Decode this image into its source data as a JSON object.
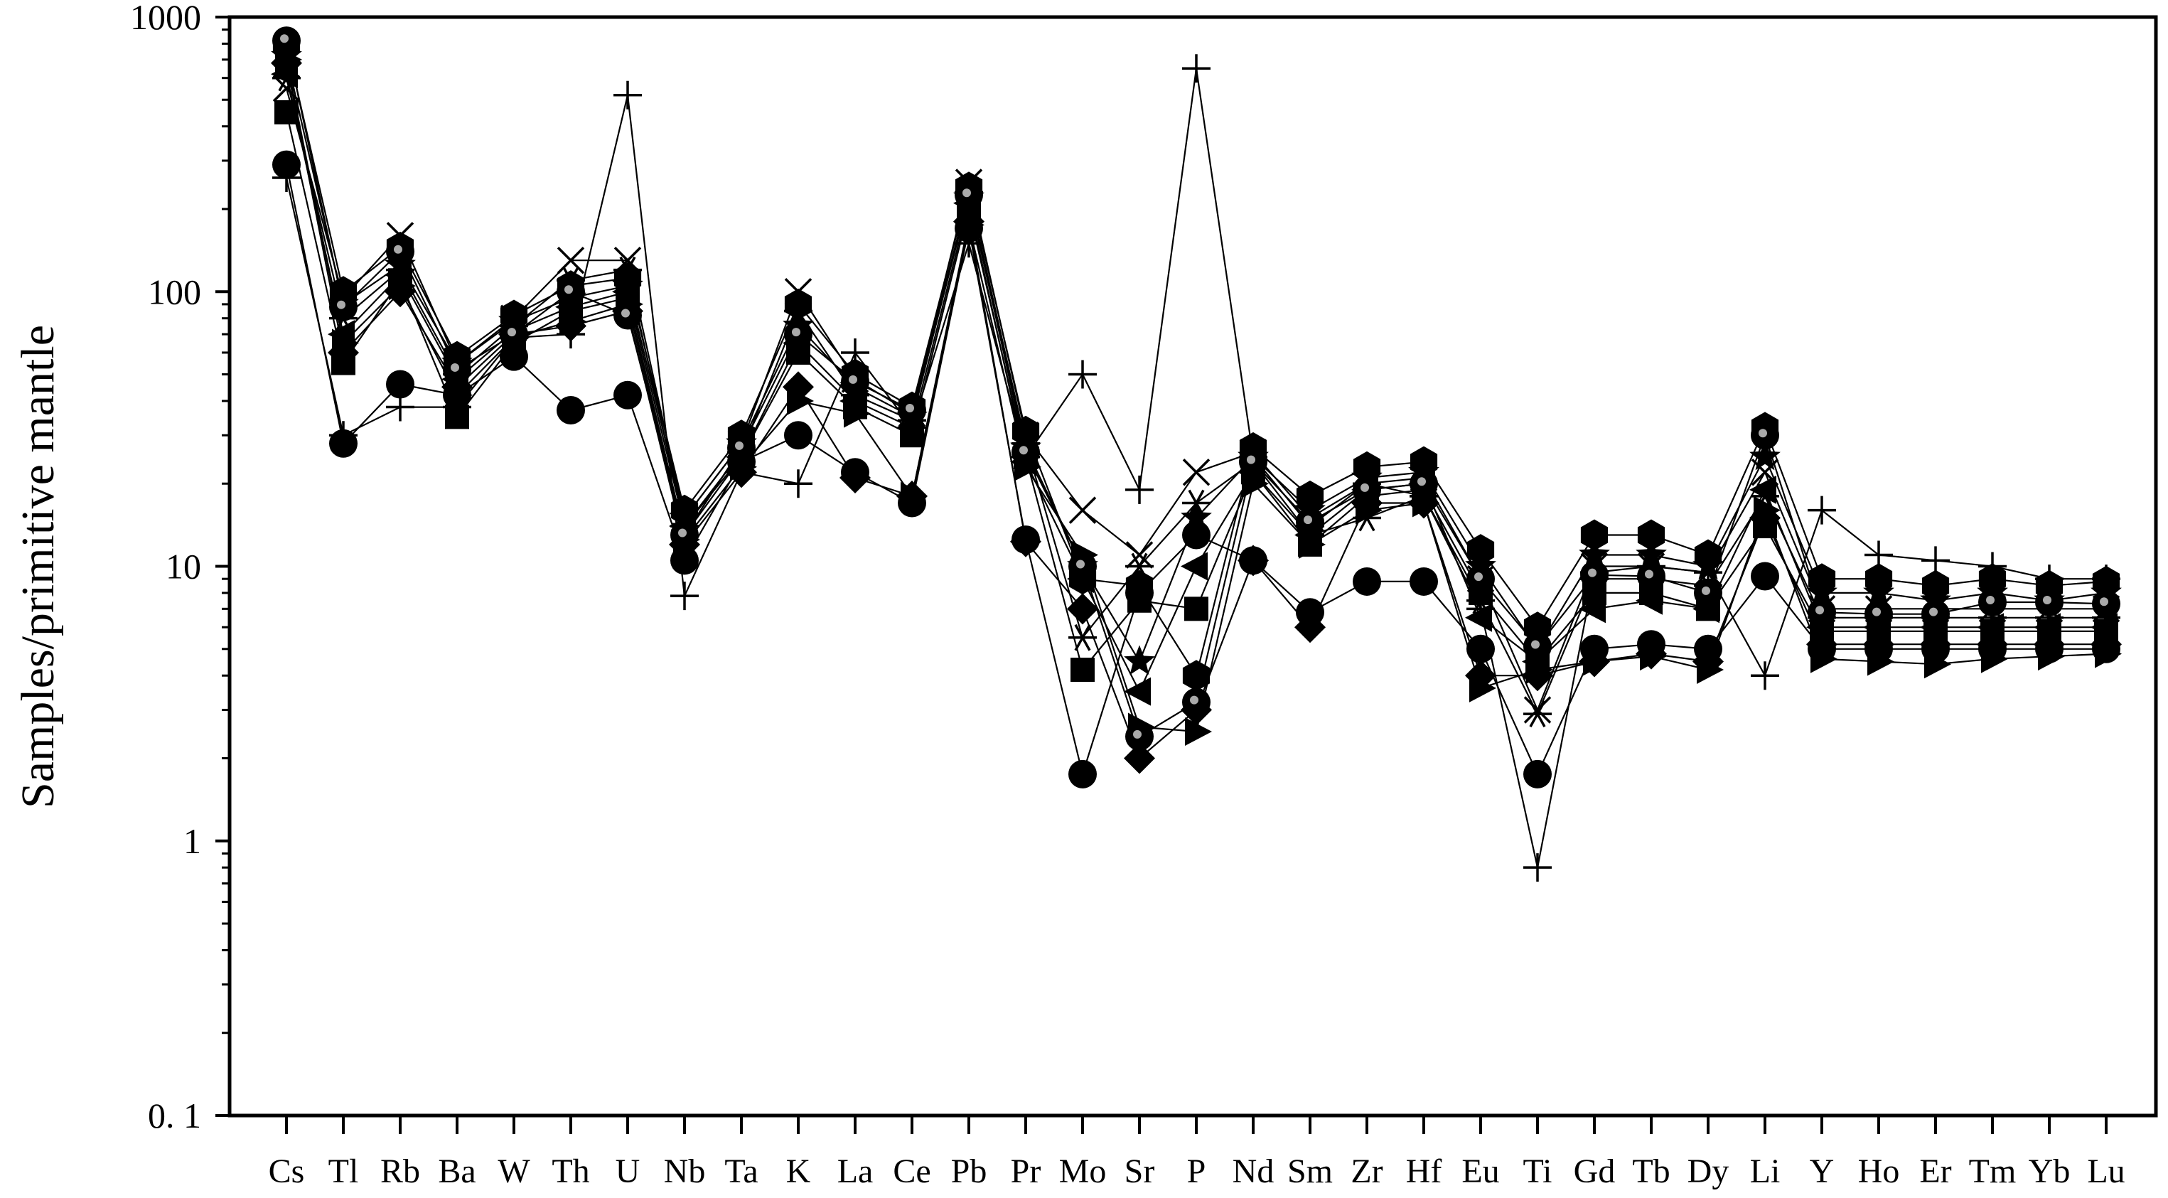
{
  "chart_data": {
    "type": "line",
    "title": "",
    "xlabel": "",
    "ylabel": "Samples/primitive mantle",
    "yscale": "log",
    "ylim": [
      0.1,
      1000
    ],
    "ytick_labels": [
      "0. 1",
      "1",
      "10",
      "100",
      "1000"
    ],
    "grid": false,
    "legend": "none",
    "categories": [
      "Cs",
      "Tl",
      "Rb",
      "Ba",
      "W",
      "Th",
      "U",
      "Nb",
      "Ta",
      "K",
      "La",
      "Ce",
      "Pb",
      "Pr",
      "Mo",
      "Sr",
      "P",
      "Nd",
      "Sm",
      "Zr",
      "Hf",
      "Eu",
      "Ti",
      "Gd",
      "Tb",
      "Dy",
      "Li",
      "Y",
      "Ho",
      "Er",
      "Tm",
      "Yb",
      "Lu"
    ],
    "series": [
      {
        "marker": "circle",
        "values": [
          290,
          28,
          46,
          42,
          58,
          37,
          42,
          10.5,
          24,
          30,
          22,
          17,
          170,
          12.5,
          1.75,
          8,
          13,
          10.5,
          6.8,
          8.8,
          8.8,
          5,
          1.75,
          5,
          5.2,
          5,
          9.2,
          5,
          5,
          5,
          5,
          5,
          5
        ]
      },
      {
        "marker": "plus",
        "values": [
          260,
          30,
          38,
          38,
          68,
          70,
          520,
          7.8,
          22,
          20,
          60,
          32,
          150,
          25,
          50,
          19,
          650,
          25,
          14,
          20,
          18,
          7,
          0.8,
          9.5,
          10,
          9.5,
          4,
          16,
          11,
          10.5,
          10,
          9,
          9
        ]
      },
      {
        "marker": "x",
        "values": [
          550,
          95,
          160,
          55,
          80,
          130,
          130,
          15,
          28,
          100,
          48,
          36,
          250,
          30,
          16,
          11,
          22,
          26,
          15,
          20,
          21,
          9,
          3,
          10,
          10,
          9.5,
          22,
          7,
          7,
          7,
          7,
          7,
          7
        ]
      },
      {
        "marker": "asterisk",
        "values": [
          600,
          80,
          120,
          50,
          75,
          110,
          120,
          14,
          26,
          85,
          42,
          34,
          230,
          28,
          5.5,
          10,
          17,
          24,
          13,
          15,
          18,
          7.5,
          2.9,
          9,
          9,
          8.5,
          18,
          6.5,
          6.5,
          6.5,
          6.5,
          6.5,
          6.5
        ]
      },
      {
        "marker": "square",
        "values": [
          450,
          55,
          110,
          35,
          65,
          85,
          95,
          13,
          25,
          60,
          38,
          30,
          200,
          25,
          4.2,
          7.5,
          7,
          22,
          12,
          18,
          19,
          8,
          4.5,
          8,
          8,
          7,
          14,
          5.8,
          5.8,
          5.8,
          5.8,
          5.8,
          5.8
        ]
      },
      {
        "marker": "diamond",
        "values": [
          680,
          60,
          100,
          45,
          70,
          75,
          85,
          12,
          22,
          45,
          21,
          18,
          180,
          12.3,
          7,
          2,
          3,
          10.5,
          6,
          17,
          17,
          4,
          4,
          4.5,
          4.8,
          4.5,
          15,
          5.2,
          5.2,
          5.2,
          5.2,
          5.2,
          5.2
        ]
      },
      {
        "marker": "triangle-right",
        "values": [
          700,
          65,
          105,
          42,
          68,
          78,
          90,
          12.5,
          23,
          40,
          36,
          18,
          175,
          23,
          11,
          2.6,
          2.5,
          20,
          12,
          16,
          17,
          3.6,
          4.2,
          4.5,
          4.7,
          4.2,
          16,
          4.6,
          4.5,
          4.4,
          4.6,
          4.7,
          4.8
        ]
      },
      {
        "marker": "triangle-left",
        "values": [
          620,
          70,
          115,
          48,
          72,
          88,
          100,
          14,
          25,
          65,
          40,
          32,
          210,
          24,
          9,
          3.5,
          10,
          22,
          13,
          19,
          20,
          6.5,
          4.5,
          7,
          7.5,
          7,
          19,
          6,
          6,
          6,
          6,
          6,
          6
        ]
      },
      {
        "marker": "hexagon",
        "values": [
          800,
          100,
          145,
          58,
          82,
          105,
          112,
          16,
          30,
          90,
          50,
          38,
          240,
          31,
          9,
          8.5,
          4,
          27,
          18,
          23,
          24,
          11.5,
          6,
          13,
          13,
          11,
          32,
          9,
          9,
          8.5,
          9,
          8.5,
          8.8
        ]
      },
      {
        "marker": "star",
        "values": [
          720,
          90,
          125,
          55,
          78,
          95,
          105,
          15,
          28,
          75,
          45,
          35,
          220,
          27,
          10,
          4.5,
          15,
          25,
          16,
          21,
          22,
          10,
          5,
          11,
          11,
          10,
          25,
          8,
          8,
          7.5,
          8,
          7.5,
          8
        ]
      },
      {
        "marker": "dot-circle",
        "values": [
          820,
          88,
          140,
          52,
          70,
          100,
          82,
          13,
          27,
          70,
          47,
          37,
          225,
          26,
          10,
          2.4,
          3.2,
          24,
          14.5,
          19,
          20,
          9,
          5.1,
          9.3,
          9.2,
          8,
          30,
          6.8,
          6.7,
          6.7,
          7.4,
          7.4,
          7.3
        ]
      }
    ]
  }
}
